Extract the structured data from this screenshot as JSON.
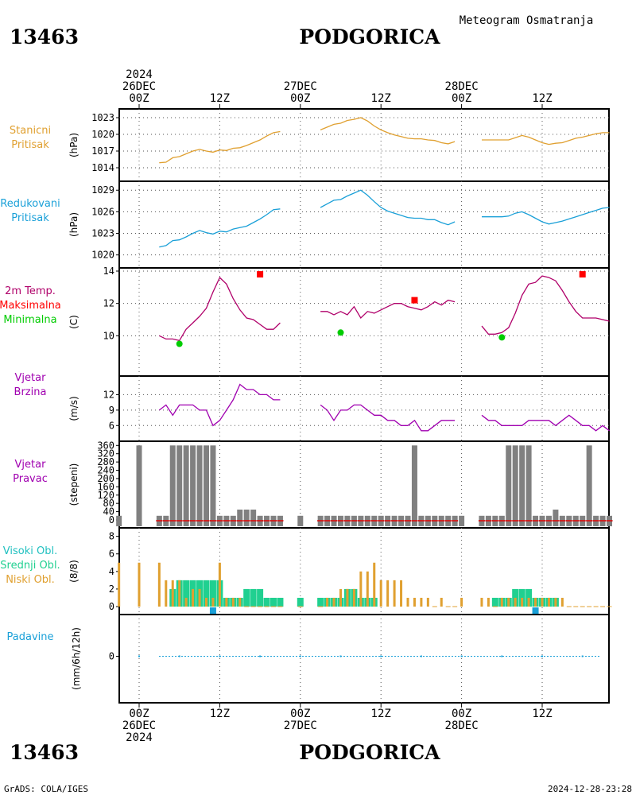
{
  "header": {
    "station_id": "13463",
    "station_name": "PODGORICA",
    "product": "Meteogram Osmatranja",
    "timestamp": "2024-12-28-23:28",
    "credit": "GrADS: COLA/IGES"
  },
  "time_axis": {
    "top": [
      {
        "hour": 0,
        "lines": [
          "2024",
          "26DEC",
          "00Z"
        ]
      },
      {
        "hour": 12,
        "lines": [
          "12Z"
        ]
      },
      {
        "hour": 24,
        "lines": [
          "27DEC",
          "00Z"
        ]
      },
      {
        "hour": 36,
        "lines": [
          "12Z"
        ]
      },
      {
        "hour": 48,
        "lines": [
          "28DEC",
          "00Z"
        ]
      },
      {
        "hour": 60,
        "lines": [
          "12Z"
        ]
      }
    ],
    "bottom": [
      {
        "hour": 0,
        "lines": [
          "00Z",
          "26DEC",
          "2024"
        ]
      },
      {
        "hour": 12,
        "lines": [
          "12Z"
        ]
      },
      {
        "hour": 24,
        "lines": [
          "00Z",
          "27DEC"
        ]
      },
      {
        "hour": 36,
        "lines": [
          "12Z"
        ]
      },
      {
        "hour": 48,
        "lines": [
          "00Z",
          "28DEC"
        ]
      },
      {
        "hour": 60,
        "lines": [
          "12Z"
        ]
      }
    ]
  },
  "colors": {
    "station_pressure": "#e0a030",
    "reduced_pressure": "#1aa0d8",
    "temperature": "#b0006a",
    "tmax": "#ff0000",
    "tmin": "#00cc00",
    "wind": "#a000b0",
    "wind_dir_bar": "#808080",
    "wind_dir_base": "#cc2222",
    "high_cloud": "#20c0c0",
    "mid_cloud": "#20d090",
    "low_cloud": "#e0a030",
    "precip": "#1aa0d8"
  },
  "chart_data": [
    {
      "type": "line",
      "id": "station_pressure",
      "labels": [
        "Stanicni",
        "Pritisak"
      ],
      "unit": "(hPa)",
      "ylim": [
        1013,
        1024
      ],
      "yticks": [
        1014,
        1017,
        1020,
        1023
      ],
      "segments": [
        {
          "x": [
            3,
            4,
            5,
            6,
            7,
            8,
            9,
            10,
            11,
            12,
            13,
            14,
            15,
            16,
            17,
            18,
            19,
            20,
            21
          ],
          "y": [
            1014.9,
            1015,
            1015.8,
            1016,
            1016.5,
            1017,
            1017.3,
            1017,
            1016.8,
            1017.2,
            1017.1,
            1017.5,
            1017.6,
            1018,
            1018.5,
            1019,
            1019.7,
            1020.3,
            1020.5
          ]
        },
        {
          "x": [
            27,
            28,
            29,
            30,
            31,
            32,
            33,
            34,
            35,
            36,
            37,
            38,
            39,
            40,
            41,
            42,
            43,
            44,
            45,
            46,
            47
          ],
          "y": [
            1020.8,
            1021.3,
            1021.8,
            1022,
            1022.5,
            1022.7,
            1023,
            1022.4,
            1021.5,
            1020.8,
            1020.3,
            1019.9,
            1019.6,
            1019.3,
            1019.2,
            1019.2,
            1019,
            1018.9,
            1018.5,
            1018.3,
            1018.7
          ]
        },
        {
          "x": [
            51,
            52,
            53,
            54,
            55,
            56,
            57,
            58,
            59,
            60,
            61,
            62,
            63,
            64,
            65,
            66,
            67,
            68,
            69,
            70
          ],
          "y": [
            1019,
            1019,
            1019,
            1019,
            1019,
            1019.4,
            1019.8,
            1019.5,
            1019,
            1018.5,
            1018.2,
            1018.4,
            1018.5,
            1018.9,
            1019.3,
            1019.5,
            1019.8,
            1020.1,
            1020.3,
            1020.3
          ]
        }
      ]
    },
    {
      "type": "line",
      "id": "reduced_pressure",
      "labels": [
        "Redukovani",
        "Pritisak"
      ],
      "unit": "(hPa)",
      "ylim": [
        1019.3,
        1029.8
      ],
      "yticks": [
        1020,
        1023,
        1026,
        1029
      ],
      "segments": [
        {
          "x": [
            3,
            4,
            5,
            6,
            7,
            8,
            9,
            10,
            11,
            12,
            13,
            14,
            15,
            16,
            17,
            18,
            19,
            20,
            21
          ],
          "y": [
            1021.1,
            1021.3,
            1022,
            1022.1,
            1022.5,
            1023,
            1023.4,
            1023.1,
            1022.9,
            1023.3,
            1023.2,
            1023.6,
            1023.8,
            1024,
            1024.5,
            1025,
            1025.6,
            1026.3,
            1026.4
          ]
        },
        {
          "x": [
            27,
            28,
            29,
            30,
            31,
            32,
            33,
            34,
            35,
            36,
            37,
            38,
            39,
            40,
            41,
            42,
            43,
            44,
            45,
            46,
            47
          ],
          "y": [
            1026.6,
            1027.1,
            1027.6,
            1027.7,
            1028.2,
            1028.6,
            1029,
            1028.3,
            1027.4,
            1026.6,
            1026.1,
            1025.8,
            1025.5,
            1025.2,
            1025.1,
            1025.1,
            1024.9,
            1024.9,
            1024.5,
            1024.2,
            1024.6
          ]
        },
        {
          "x": [
            51,
            52,
            53,
            54,
            55,
            56,
            57,
            58,
            59,
            60,
            61,
            62,
            63,
            64,
            65,
            66,
            67,
            68,
            69,
            70
          ],
          "y": [
            1025.3,
            1025.3,
            1025.3,
            1025.3,
            1025.4,
            1025.8,
            1026,
            1025.6,
            1025.1,
            1024.6,
            1024.3,
            1024.5,
            1024.7,
            1025,
            1025.3,
            1025.6,
            1025.9,
            1026.2,
            1026.5,
            1026.6
          ]
        }
      ]
    },
    {
      "type": "line",
      "id": "temperature",
      "labels": [
        "2m Temp.",
        "Maksimalna",
        "Minimalna"
      ],
      "unit": "(C)",
      "ylim": [
        8,
        14
      ],
      "yticks": [
        10,
        12,
        14
      ],
      "segments": [
        {
          "x": [
            3,
            4,
            5,
            6,
            7,
            8,
            9,
            10,
            11,
            12,
            13,
            14,
            15,
            16,
            17,
            18,
            19,
            20,
            21
          ],
          "y": [
            10,
            9.8,
            9.8,
            9.7,
            10.4,
            10.8,
            11.2,
            11.7,
            12.7,
            13.6,
            13.2,
            12.3,
            11.6,
            11.1,
            11,
            10.7,
            10.4,
            10.4,
            10.8
          ]
        },
        {
          "x": [
            27,
            28,
            29,
            30,
            31,
            32,
            33,
            34,
            35,
            36,
            37,
            38,
            39,
            40,
            41,
            42,
            43,
            44,
            45,
            46,
            47
          ],
          "y": [
            11.5,
            11.5,
            11.3,
            11.5,
            11.3,
            11.8,
            11.1,
            11.5,
            11.4,
            11.6,
            11.8,
            12,
            12,
            11.8,
            11.7,
            11.6,
            11.8,
            12.1,
            11.9,
            12.2,
            12.1
          ]
        },
        {
          "x": [
            51,
            52,
            53,
            54,
            55,
            56,
            57,
            58,
            59,
            60,
            61,
            62,
            63,
            64,
            65,
            66,
            67,
            68,
            69,
            70
          ],
          "y": [
            10.6,
            10.1,
            10.1,
            10.2,
            10.5,
            11.4,
            12.5,
            13.2,
            13.3,
            13.7,
            13.6,
            13.4,
            12.8,
            12.1,
            11.5,
            11.1,
            11.1,
            11.1,
            11,
            10.9
          ]
        }
      ],
      "tmax_points": {
        "x": [
          18,
          41,
          66
        ],
        "y": [
          13.8,
          12.2,
          13.8
        ]
      },
      "tmin_points": {
        "x": [
          6,
          30,
          54
        ],
        "y": [
          9.5,
          10.2,
          9.9
        ]
      }
    },
    {
      "type": "line",
      "id": "wind_speed",
      "labels": [
        "Vjetar",
        "Brzina"
      ],
      "unit": "(m/s)",
      "ylim": [
        4.5,
        15
      ],
      "yticks": [
        6,
        9,
        12
      ],
      "segments": [
        {
          "x": [
            3,
            4,
            5,
            6,
            7,
            8,
            9,
            10,
            11,
            12,
            13,
            14,
            15,
            16,
            17,
            18,
            19,
            20,
            21
          ],
          "y": [
            9,
            10,
            8,
            10,
            10,
            10,
            9,
            9,
            6,
            7,
            9,
            11,
            14,
            13,
            13,
            12,
            12,
            11,
            11
          ]
        },
        {
          "x": [
            27,
            28,
            29,
            30,
            31,
            32,
            33,
            34,
            35,
            36,
            37,
            38,
            39,
            40,
            41,
            42,
            43,
            44,
            45,
            46,
            47
          ],
          "y": [
            10,
            9,
            7,
            9,
            9,
            10,
            10,
            9,
            8,
            8,
            7,
            7,
            6,
            6,
            7,
            5,
            5,
            6,
            7,
            7,
            7
          ]
        },
        {
          "x": [
            51,
            52,
            53,
            54,
            55,
            56,
            57,
            58,
            59,
            60,
            61,
            62,
            63,
            64,
            65,
            66,
            67,
            68,
            69,
            70
          ],
          "y": [
            8,
            7,
            7,
            6,
            6,
            6,
            6,
            7,
            7,
            7,
            7,
            6,
            7,
            8,
            7,
            6,
            6,
            5,
            6,
            5
          ]
        }
      ]
    },
    {
      "type": "bar",
      "id": "wind_direction",
      "labels": [
        "Vjetar",
        "Pravac"
      ],
      "unit": "(stepeni)",
      "ylim": [
        0,
        365
      ],
      "yticks": [
        0,
        40,
        80,
        120,
        160,
        200,
        240,
        280,
        320,
        360
      ],
      "x": [
        -3,
        0,
        3,
        4,
        5,
        6,
        7,
        8,
        9,
        10,
        11,
        12,
        13,
        14,
        15,
        16,
        17,
        18,
        19,
        20,
        21,
        24,
        27,
        28,
        29,
        30,
        31,
        32,
        33,
        34,
        35,
        36,
        37,
        38,
        39,
        40,
        41,
        42,
        43,
        44,
        45,
        46,
        47,
        48,
        51,
        52,
        53,
        54,
        55,
        56,
        57,
        58,
        59,
        60,
        61,
        62,
        63,
        64,
        65,
        66,
        67,
        68,
        69,
        70
      ],
      "values": [
        20,
        360,
        20,
        20,
        360,
        360,
        360,
        360,
        360,
        360,
        360,
        20,
        20,
        20,
        50,
        50,
        50,
        20,
        20,
        20,
        20,
        20,
        20,
        20,
        20,
        20,
        20,
        20,
        20,
        20,
        20,
        20,
        20,
        20,
        20,
        20,
        360,
        20,
        20,
        20,
        20,
        20,
        20,
        20,
        20,
        20,
        20,
        20,
        360,
        360,
        360,
        360,
        20,
        20,
        20,
        50,
        20,
        20,
        20,
        20,
        360,
        20,
        20,
        20
      ],
      "calm_hours": [
        3,
        4,
        5,
        6,
        7,
        8,
        9,
        10,
        11,
        12,
        13,
        14,
        15,
        16,
        17,
        18,
        19,
        20,
        21,
        27,
        28,
        29,
        30,
        31,
        32,
        33,
        34,
        35,
        36,
        37,
        38,
        39,
        40,
        41,
        42,
        43,
        44,
        45,
        46,
        47,
        51,
        52,
        53,
        54,
        55,
        56,
        57,
        58,
        59,
        60,
        61,
        62,
        63,
        64,
        65,
        66,
        67,
        68,
        69,
        70
      ]
    },
    {
      "type": "bar",
      "id": "clouds",
      "labels": [
        "Visoki Obl.",
        "Srednji Obl.",
        "Niski Obl."
      ],
      "unit": "(8/8)",
      "ylim": [
        0,
        8.6
      ],
      "yticks": [
        0,
        2,
        4,
        6,
        8
      ],
      "x": [
        -3,
        0,
        3,
        4,
        5,
        6,
        7,
        8,
        9,
        10,
        11,
        12,
        13,
        14,
        15,
        16,
        17,
        18,
        19,
        20,
        21,
        24,
        27,
        28,
        29,
        30,
        31,
        32,
        33,
        34,
        35,
        36,
        37,
        38,
        39,
        40,
        41,
        42,
        43,
        44,
        45,
        46,
        47,
        48,
        51,
        52,
        53,
        54,
        55,
        56,
        57,
        58,
        59,
        60,
        61,
        62,
        63,
        64,
        65,
        66,
        67,
        68,
        69,
        70
      ],
      "series": [
        {
          "name": "Visoki Obl.",
          "values": [
            0,
            0,
            0,
            0,
            0,
            0,
            0,
            0,
            0,
            0,
            0,
            0,
            0,
            0,
            0,
            0,
            0,
            0,
            0,
            0,
            0,
            0,
            0,
            0,
            0,
            0,
            0,
            0,
            0,
            0,
            0,
            0,
            0,
            0,
            0,
            0,
            0,
            0,
            0,
            0,
            0,
            0,
            0,
            0,
            0,
            0,
            0,
            0,
            0,
            0,
            0,
            0,
            0,
            0,
            0,
            0,
            0,
            0,
            0,
            0,
            0,
            0,
            0,
            0
          ]
        },
        {
          "name": "Srednji Obl.",
          "values": [
            0,
            0,
            0,
            0,
            2,
            3,
            3,
            3,
            3,
            3,
            3,
            3,
            1,
            1,
            1,
            2,
            2,
            2,
            1,
            1,
            1,
            1,
            1,
            1,
            1,
            1,
            2,
            2,
            1,
            1,
            1,
            0,
            0,
            0,
            0,
            0,
            0,
            0,
            0,
            0,
            0,
            0,
            0,
            0,
            0,
            0,
            1,
            1,
            1,
            2,
            2,
            2,
            1,
            1,
            1,
            1,
            0,
            0,
            0,
            0,
            0,
            0,
            0,
            0
          ]
        },
        {
          "name": "Niski Obl.",
          "values": [
            5,
            5,
            5,
            3,
            3,
            3,
            1,
            2,
            2,
            1,
            1,
            5,
            1,
            1,
            1,
            0,
            0,
            0,
            0,
            0,
            0,
            0,
            0,
            1,
            1,
            2,
            2,
            2,
            4,
            4,
            5,
            3,
            3,
            3,
            3,
            1,
            1,
            1,
            1,
            0,
            1,
            0,
            0,
            1,
            1,
            1,
            0,
            1,
            1,
            1,
            1,
            1,
            1,
            1,
            1,
            1,
            1,
            0,
            0,
            0,
            0,
            0,
            0,
            0
          ]
        }
      ],
      "precip_marks": [
        11,
        59
      ]
    },
    {
      "type": "bar",
      "id": "precipitation",
      "labels": [
        "Padavine"
      ],
      "unit": "(mm/6h/12h)",
      "ylim": [
        -5,
        5
      ],
      "yticks": [
        0
      ],
      "x": [
        0,
        6,
        12,
        18,
        24,
        30,
        36,
        42,
        48,
        54,
        60,
        66
      ],
      "values": [
        0,
        0,
        0,
        0,
        0,
        0,
        0,
        0,
        0,
        0,
        0,
        0
      ]
    }
  ]
}
